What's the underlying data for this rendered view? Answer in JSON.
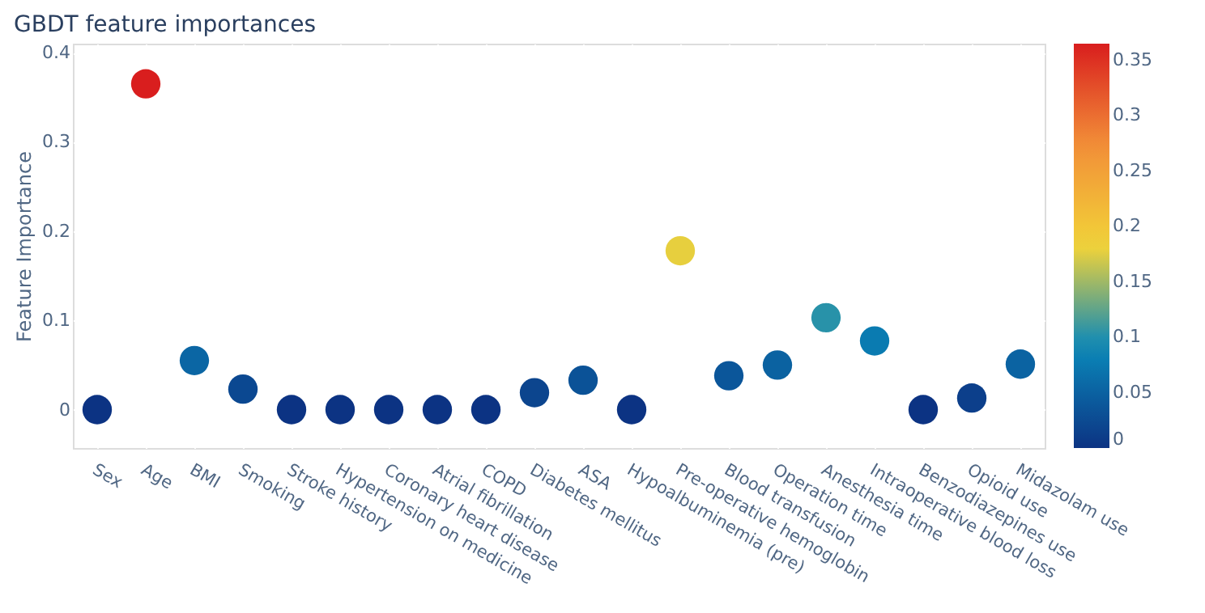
{
  "chart_data": {
    "type": "scatter",
    "title": "GBDT feature importances",
    "ylabel": "Feature Importance",
    "categories": [
      "Sex",
      "Age",
      "BMI",
      "Smoking",
      "Stroke history",
      "Hypertension on medicine",
      "Coronary heart disease",
      "Atrial fibrillation",
      "COPD",
      "Diabetes mellitus",
      "ASA",
      "Hypoalbuminemia (pre)",
      "Pre-operative hemoglobin",
      "Blood transfusion",
      "Operation time",
      "Anesthesia time",
      "Intraoperative blood loss",
      "Benzodiazepines use",
      "Opioid use",
      "Midazolam use"
    ],
    "values": [
      0,
      0.365,
      0.055,
      0.023,
      0,
      0,
      0,
      0,
      0,
      0.019,
      0.033,
      0,
      0.178,
      0.038,
      0.05,
      0.103,
      0.077,
      0,
      0.013,
      0.051
    ],
    "cvalues": [
      0,
      0.365,
      0.055,
      0.023,
      0,
      0,
      0,
      0,
      0,
      0.019,
      0.033,
      0,
      0.178,
      0.038,
      0.05,
      0.103,
      0.077,
      0,
      0.013,
      0.051
    ],
    "clim": [
      0,
      0.365
    ],
    "cticks": [
      0,
      0.05,
      0.1,
      0.15,
      0.2,
      0.25,
      0.3,
      0.35
    ],
    "ylim": [
      -0.043,
      0.41
    ],
    "yticks": [
      {
        "value": 0,
        "label": "0"
      },
      0.1,
      0.2,
      0.3,
      0.4
    ],
    "grid": true,
    "marker": "circle"
  }
}
